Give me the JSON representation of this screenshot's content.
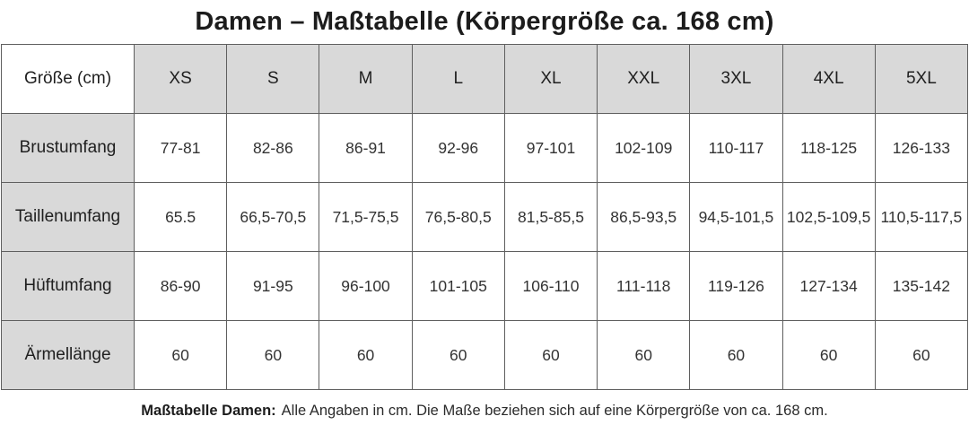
{
  "chart_data": {
    "type": "table",
    "title": "Damen – Maßtabelle (Körpergröße ca. 168 cm)",
    "columns": [
      "Größe (cm)",
      "XS",
      "S",
      "M",
      "L",
      "XL",
      "XXL",
      "3XL",
      "4XL",
      "5XL"
    ],
    "rows": [
      [
        "Brustumfang",
        "77-81",
        "82-86",
        "86-91",
        "92-96",
        "97-101",
        "102-109",
        "110-117",
        "118-125",
        "126-133"
      ],
      [
        "Taillenumfang",
        "65.5",
        "66,5-70,5",
        "71,5-75,5",
        "76,5-80,5",
        "81,5-85,5",
        "86,5-93,5",
        "94,5-101,5",
        "102,5-109,5",
        "110,5-117,5"
      ],
      [
        "Hüftumfang",
        "86-90",
        "91-95",
        "96-100",
        "101-105",
        "106-110",
        "111-118",
        "119-126",
        "127-134",
        "135-142"
      ],
      [
        "Ärmellänge",
        "60",
        "60",
        "60",
        "60",
        "60",
        "60",
        "60",
        "60",
        "60"
      ]
    ],
    "footnote_lead": "Maßtabelle Damen:",
    "footnote_text": "Alle Angaben in cm. Die Maße beziehen sich auf eine Körpergröße von ca. 168 cm.",
    "layout": {
      "header_fill": "#d9d9d9",
      "label_column_fill": "#d9d9d9",
      "value_fill": "#ffffff",
      "border_color": "#5f5f5f",
      "grid": "on"
    }
  }
}
